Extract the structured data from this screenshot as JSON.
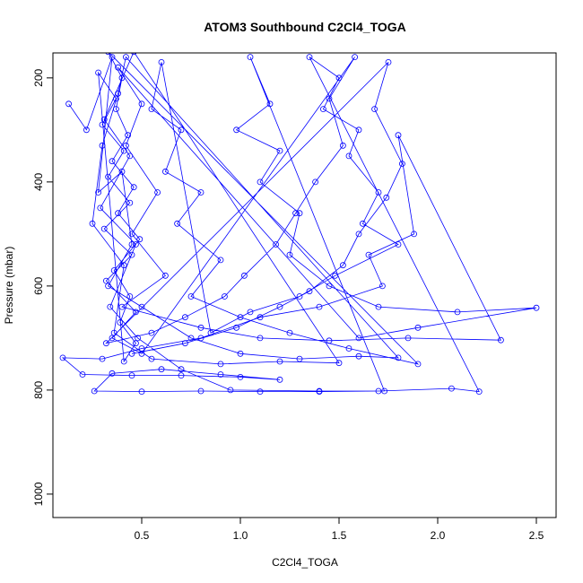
{
  "chart_data": {
    "type": "line",
    "title": "ATOM3 Southbound C2Cl4_TOGA",
    "xlabel": "C2Cl4_TOGA",
    "ylabel": "Pressure (mbar)",
    "xlim": [
      0.05,
      2.6
    ],
    "ylim": [
      1045,
      152
    ],
    "y_reversed": true,
    "xticks": [
      0.5,
      1.0,
      1.5,
      2.0,
      2.5
    ],
    "xtick_labels": [
      "0.5",
      "1.0",
      "1.5",
      "2.0",
      "2.5"
    ],
    "yticks": [
      200,
      400,
      600,
      800,
      1000
    ],
    "ytick_labels": [
      "200",
      "400",
      "600",
      "800",
      "1000"
    ],
    "grid": false,
    "legend": "none",
    "colors": {
      "series": "#0000ff"
    },
    "series": [
      {
        "marker": "open-circle",
        "connected": true,
        "points": [
          [
            0.13,
            250
          ],
          [
            0.22,
            300
          ],
          [
            0.35,
            160
          ],
          [
            0.28,
            420
          ],
          [
            0.4,
            380
          ],
          [
            0.45,
            520
          ],
          [
            0.33,
            600
          ],
          [
            0.5,
            640
          ],
          [
            0.75,
            700
          ],
          [
            1.0,
            730
          ],
          [
            1.3,
            740
          ],
          [
            1.6,
            735
          ],
          [
            1.8,
            738
          ],
          [
            0.42,
            160
          ],
          [
            0.38,
            230
          ],
          [
            0.3,
            330
          ],
          [
            0.25,
            480
          ],
          [
            0.41,
            560
          ],
          [
            0.36,
            690
          ],
          [
            0.55,
            740
          ],
          [
            0.9,
            750
          ],
          [
            1.2,
            745
          ],
          [
            1.5,
            748
          ],
          [
            0.46,
            150
          ],
          [
            0.31,
            280
          ],
          [
            0.44,
            350
          ],
          [
            0.29,
            450
          ],
          [
            0.47,
            520
          ],
          [
            0.34,
            640
          ],
          [
            0.48,
            700
          ],
          [
            0.7,
            760
          ],
          [
            0.95,
            800
          ],
          [
            1.4,
            802
          ],
          [
            1.73,
            802
          ],
          [
            1.05,
            160
          ],
          [
            1.15,
            250
          ],
          [
            0.98,
            300
          ],
          [
            1.2,
            340
          ],
          [
            1.1,
            400
          ],
          [
            1.3,
            460
          ],
          [
            1.25,
            540
          ],
          [
            1.45,
            600
          ],
          [
            1.7,
            640
          ],
          [
            2.1,
            650
          ],
          [
            2.5,
            642
          ],
          [
            1.9,
            680
          ],
          [
            1.6,
            700
          ],
          [
            0.38,
            180
          ],
          [
            0.5,
            250
          ],
          [
            0.42,
            330
          ],
          [
            0.58,
            420
          ],
          [
            0.45,
            500
          ],
          [
            0.62,
            580
          ],
          [
            0.4,
            640
          ],
          [
            0.8,
            680
          ],
          [
            1.1,
            700
          ],
          [
            1.45,
            705
          ],
          [
            1.85,
            700
          ],
          [
            2.32,
            704
          ],
          [
            1.8,
            310
          ],
          [
            1.88,
            500
          ],
          [
            1.65,
            540
          ],
          [
            1.72,
            600
          ],
          [
            1.4,
            640
          ],
          [
            1.1,
            660
          ],
          [
            0.8,
            700
          ],
          [
            0.5,
            720
          ],
          [
            0.3,
            740
          ],
          [
            0.1,
            738
          ],
          [
            0.2,
            770
          ],
          [
            0.45,
            772
          ],
          [
            0.7,
            772
          ],
          [
            1.0,
            775
          ],
          [
            1.2,
            780
          ],
          [
            0.9,
            770
          ],
          [
            0.6,
            760
          ],
          [
            0.35,
            768
          ],
          [
            0.26,
            802
          ],
          [
            0.5,
            803
          ],
          [
            0.8,
            802
          ],
          [
            1.1,
            803
          ],
          [
            1.4,
            803
          ],
          [
            1.7,
            802
          ],
          [
            2.07,
            797
          ],
          [
            2.21,
            803
          ],
          [
            1.35,
            160
          ],
          [
            1.5,
            200
          ],
          [
            1.42,
            260
          ],
          [
            1.6,
            300
          ],
          [
            1.55,
            350
          ],
          [
            1.7,
            420
          ],
          [
            1.62,
            480
          ],
          [
            1.8,
            520
          ],
          [
            1.48,
            580
          ],
          [
            1.3,
            620
          ],
          [
            1.05,
            650
          ],
          [
            0.85,
            690
          ],
          [
            0.6,
            170
          ],
          [
            0.55,
            260
          ],
          [
            0.7,
            300
          ],
          [
            0.62,
            380
          ],
          [
            0.8,
            420
          ],
          [
            0.68,
            480
          ],
          [
            0.9,
            550
          ],
          [
            0.75,
            620
          ],
          [
            1.0,
            660
          ],
          [
            1.25,
            690
          ],
          [
            1.55,
            720
          ],
          [
            1.9,
            750
          ],
          [
            0.33,
            150
          ],
          [
            0.4,
            200
          ],
          [
            0.37,
            260
          ],
          [
            0.43,
            310
          ],
          [
            0.35,
            360
          ],
          [
            0.46,
            410
          ],
          [
            0.38,
            460
          ],
          [
            0.49,
            510
          ],
          [
            0.36,
            570
          ],
          [
            0.44,
            620
          ],
          [
            0.39,
            670
          ],
          [
            0.47,
            710
          ],
          [
            0.41,
            745
          ],
          [
            0.28,
            190
          ],
          [
            0.37,
            240
          ],
          [
            0.3,
            290
          ],
          [
            0.41,
            340
          ],
          [
            0.33,
            390
          ],
          [
            0.44,
            440
          ],
          [
            0.31,
            490
          ],
          [
            0.45,
            540
          ],
          [
            0.32,
            590
          ],
          [
            0.47,
            650
          ],
          [
            0.35,
            700
          ],
          [
            0.5,
            730
          ],
          [
            1.58,
            160
          ],
          [
            1.45,
            240
          ],
          [
            1.52,
            330
          ],
          [
            1.38,
            400
          ],
          [
            1.28,
            460
          ],
          [
            1.18,
            520
          ],
          [
            1.02,
            580
          ],
          [
            0.92,
            620
          ],
          [
            0.72,
            660
          ],
          [
            0.55,
            690
          ],
          [
            0.32,
            710
          ],
          [
            1.75,
            170
          ],
          [
            1.68,
            260
          ],
          [
            1.82,
            365
          ],
          [
            1.74,
            430
          ],
          [
            1.6,
            500
          ],
          [
            1.52,
            560
          ],
          [
            1.35,
            610
          ],
          [
            1.2,
            640
          ],
          [
            0.98,
            680
          ],
          [
            0.72,
            710
          ],
          [
            0.45,
            730
          ]
        ]
      }
    ]
  }
}
